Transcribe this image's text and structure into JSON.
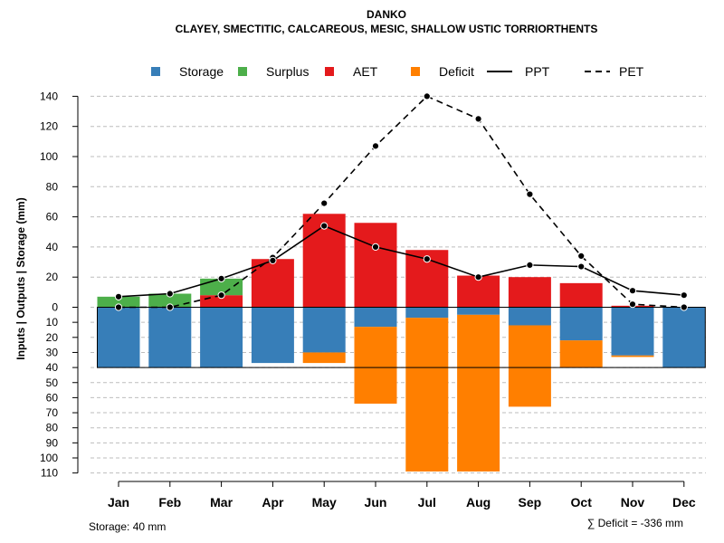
{
  "chart_data": {
    "type": "bar",
    "title": "DANKO",
    "subtitle": "CLAYEY, SMECTITIC, CALCAREOUS, MESIC, SHALLOW USTIC TORRIORTHENTS",
    "ylabel": "Inputs | Outputs | Storage    (mm)",
    "xlabel": "",
    "categories": [
      "Jan",
      "Feb",
      "Mar",
      "Apr",
      "May",
      "Jun",
      "Jul",
      "Aug",
      "Sep",
      "Oct",
      "Nov",
      "Dec"
    ],
    "ylim_top": [
      0,
      140
    ],
    "ylim_bottom": [
      0,
      110
    ],
    "y_ticks_top": [
      "0",
      "20",
      "40",
      "60",
      "80",
      "100",
      "120",
      "140"
    ],
    "y_ticks_bottom": [
      "10",
      "20",
      "30",
      "40",
      "50",
      "60",
      "70",
      "80",
      "90",
      "100",
      "110"
    ],
    "legend": [
      {
        "label": "Storage",
        "kind": "box",
        "color": "#377EB8"
      },
      {
        "label": "Surplus",
        "kind": "box",
        "color": "#4DAF4A"
      },
      {
        "label": "AET",
        "kind": "box",
        "color": "#E41A1C"
      },
      {
        "label": "Deficit",
        "kind": "box",
        "color": "#FF7F00"
      },
      {
        "label": "PPT",
        "kind": "solid",
        "color": "#000000"
      },
      {
        "label": "PET",
        "kind": "dashed",
        "color": "#000000"
      }
    ],
    "series": [
      {
        "name": "AET",
        "values": [
          0,
          0,
          8,
          32,
          62,
          56,
          38,
          21,
          20,
          16,
          1,
          0
        ]
      },
      {
        "name": "Surplus",
        "values": [
          7,
          9,
          11,
          0,
          0,
          0,
          0,
          0,
          0,
          0,
          0,
          0
        ]
      },
      {
        "name": "Storage",
        "values": [
          40,
          40,
          40,
          37,
          30,
          13,
          7,
          5,
          12,
          22,
          32,
          40
        ]
      },
      {
        "name": "Deficit",
        "values": [
          0,
          0,
          0,
          0,
          7,
          51,
          102,
          104,
          54,
          18,
          1,
          0
        ]
      },
      {
        "name": "PPT",
        "values": [
          7,
          9,
          19,
          31,
          54,
          40,
          32,
          20,
          28,
          27,
          11,
          8
        ]
      },
      {
        "name": "PET",
        "values": [
          0,
          0,
          8,
          33,
          69,
          107,
          140,
          125,
          75,
          34,
          2,
          0
        ]
      }
    ],
    "storage_capacity": 40,
    "footer_left": "Storage: 40 mm",
    "footer_right": "∑ Deficit = -336 mm"
  }
}
